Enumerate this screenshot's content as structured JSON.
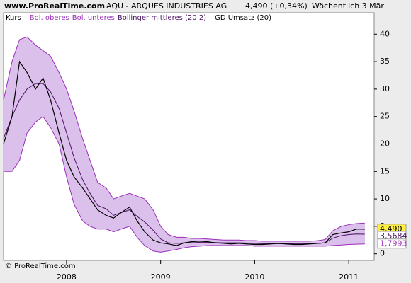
{
  "header": {
    "site": "www.ProRealTime.com",
    "instrument": "AQU - ARQUES INDUSTRIES AG",
    "quote": "4,490 (+0,34%)",
    "period": "Wöchentlich  3 Mär"
  },
  "footer": "© ProRealTime.com",
  "chart_data": {
    "type": "bollinger",
    "legend_extra": "GD Umsatz (20)",
    "x": [
      2007.33,
      2007.42,
      2007.5,
      2007.58,
      2007.67,
      2007.75,
      2007.83,
      2007.92,
      2008,
      2008.08,
      2008.17,
      2008.25,
      2008.33,
      2008.42,
      2008.5,
      2008.58,
      2008.67,
      2008.75,
      2008.83,
      2008.92,
      2009,
      2009.08,
      2009.17,
      2009.25,
      2009.33,
      2009.42,
      2009.5,
      2009.58,
      2009.67,
      2009.75,
      2009.83,
      2009.92,
      2010,
      2010.08,
      2010.17,
      2010.25,
      2010.33,
      2010.42,
      2010.5,
      2010.58,
      2010.67,
      2010.75,
      2010.83,
      2010.92,
      2011,
      2011.08,
      2011.17
    ],
    "series": [
      {
        "name": "Kurs",
        "color": "#000000",
        "role": "price",
        "values": [
          20,
          25,
          35,
          33,
          30,
          32,
          28,
          22,
          17,
          14,
          12,
          10,
          8,
          7,
          6.5,
          7.5,
          8.5,
          6,
          4,
          2.5,
          2,
          1.8,
          1.5,
          2,
          2.2,
          2.3,
          2.2,
          2,
          1.9,
          1.8,
          1.9,
          1.8,
          1.7,
          1.7,
          1.8,
          1.9,
          1.8,
          1.7,
          1.7,
          1.8,
          1.9,
          2,
          3.5,
          3.8,
          4,
          4.5,
          4.49
        ]
      },
      {
        "name": "Bol. oberes",
        "color": "#9a2fb8",
        "role": "upper",
        "values": [
          28,
          35,
          39,
          39.5,
          38,
          37,
          36,
          33,
          30,
          26,
          21,
          17,
          13,
          12,
          10,
          10.5,
          11,
          10.5,
          10,
          8,
          5,
          3.5,
          3,
          3,
          2.8,
          2.8,
          2.7,
          2.6,
          2.5,
          2.5,
          2.5,
          2.4,
          2.4,
          2.3,
          2.3,
          2.3,
          2.3,
          2.3,
          2.3,
          2.3,
          2.4,
          2.6,
          4.2,
          5,
          5.3,
          5.5,
          5.6
        ]
      },
      {
        "name": "Bol. unteres",
        "color": "#9a2fb8",
        "role": "lower",
        "values": [
          15,
          15,
          17,
          22,
          24,
          25,
          23,
          20,
          14,
          9,
          6,
          5,
          4.5,
          4.5,
          4,
          4.5,
          5,
          3,
          1.5,
          0.5,
          0.3,
          0.5,
          0.8,
          1.1,
          1.3,
          1.4,
          1.5,
          1.5,
          1.5,
          1.5,
          1.5,
          1.5,
          1.4,
          1.4,
          1.4,
          1.4,
          1.4,
          1.4,
          1.4,
          1.4,
          1.4,
          1.4,
          1.5,
          1.6,
          1.7,
          1.75,
          1.7993
        ]
      },
      {
        "name": "Bollinger mittleres (20 2)",
        "color": "#4a1060",
        "role": "middle",
        "values": [
          21,
          25,
          28,
          30,
          31,
          31,
          29.5,
          26.5,
          22,
          17.5,
          13.5,
          11,
          8.8,
          8.2,
          7,
          7.5,
          8,
          6.8,
          5.8,
          4.3,
          2.7,
          2,
          1.9,
          2,
          2,
          2.1,
          2.1,
          2.05,
          2,
          2,
          2,
          1.95,
          1.9,
          1.85,
          1.85,
          1.85,
          1.85,
          1.85,
          1.85,
          1.85,
          1.9,
          2,
          2.85,
          3.3,
          3.5,
          3.6,
          3.5684
        ]
      }
    ],
    "band_fill": "#dcc0ec",
    "ymarkers": [
      {
        "value": 4.49,
        "label": "4,490",
        "bg": "#ffee44",
        "fg": "#000000"
      },
      {
        "value": 3.5684,
        "label": "3,5684",
        "bg": "#ffffff",
        "fg": "#4a1060"
      },
      {
        "value": 1.7993,
        "label": "1,7993",
        "bg": "#ffffff",
        "fg": "#9a2fb8"
      }
    ],
    "xlim": [
      2007.33,
      2011.27
    ],
    "ylim": [
      -1.2,
      43.9
    ],
    "xticks": [
      {
        "value": 2008,
        "label": "2008"
      },
      {
        "value": 2009,
        "label": "2009"
      },
      {
        "value": 2010,
        "label": "2010"
      },
      {
        "value": 2011,
        "label": "2011"
      }
    ],
    "yticks": [
      0,
      5,
      10,
      15,
      20,
      25,
      30,
      35,
      40
    ],
    "grid": false
  }
}
